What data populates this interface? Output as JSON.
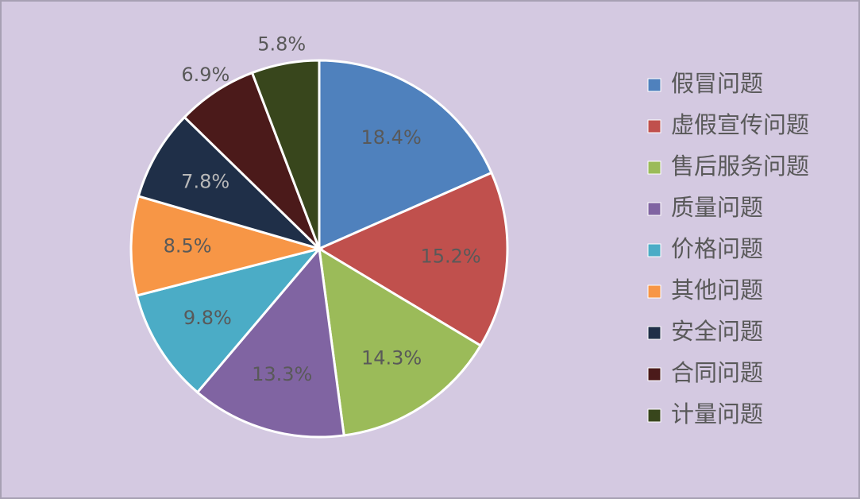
{
  "chart_data": {
    "type": "pie",
    "categories": [
      "假冒问题",
      "虚假宣传问题",
      "售后服务问题",
      "质量问题",
      "价格问题",
      "其他问题",
      "安全问题",
      "合同问题",
      "计量问题"
    ],
    "values": [
      18.4,
      15.2,
      14.3,
      13.3,
      9.8,
      8.5,
      7.8,
      6.9,
      5.8
    ],
    "value_labels": [
      "18.4%",
      "15.2%",
      "14.3%",
      "13.3%",
      "9.8%",
      "8.5%",
      "7.8%",
      "6.9%",
      "5.8%"
    ],
    "colors": [
      "#4f81bd",
      "#c0504d",
      "#9bbb59",
      "#8064a2",
      "#4bacc6",
      "#f79646",
      "#1f2f48",
      "#4b1a1a",
      "#38461c"
    ],
    "legend": "right"
  }
}
